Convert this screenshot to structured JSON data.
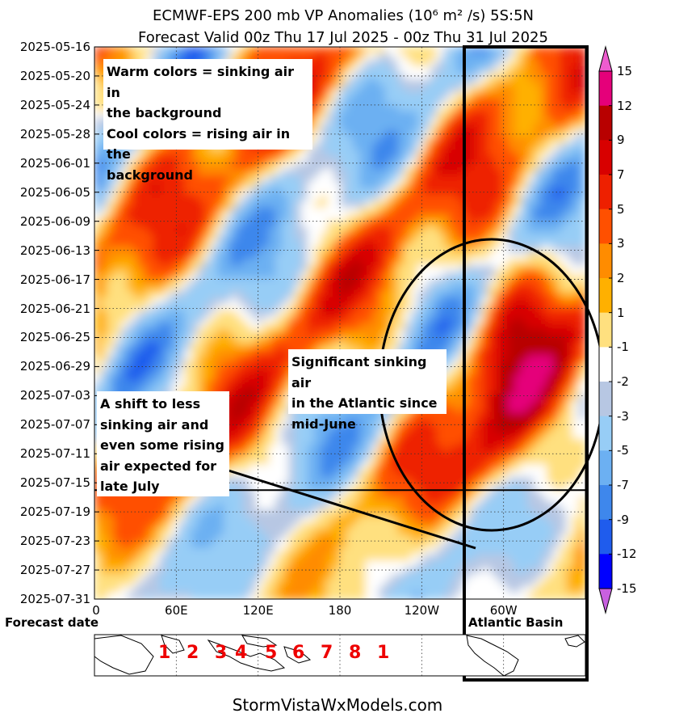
{
  "chart_data": {
    "type": "heatmap",
    "title": "ECMWF-EPS 200 mb VP Anomalies",
    "title_units": "(10⁶ m² /s) 5S:5N",
    "subtitle": "Forecast Valid 00z Thu 17 Jul 2025 - 00z Thu 31 Jul 2025",
    "y_tick_labels": [
      "2025-05-16",
      "2025-05-20",
      "2025-05-24",
      "2025-05-28",
      "2025-06-01",
      "2025-06-05",
      "2025-06-09",
      "2025-06-13",
      "2025-06-17",
      "2025-06-21",
      "2025-06-25",
      "2025-06-29",
      "2025-07-03",
      "2025-07-07",
      "2025-07-11",
      "2025-07-15",
      "2025-07-19",
      "2025-07-23",
      "2025-07-27",
      "2025-07-31"
    ],
    "x_tick_labels": [
      "0",
      "60E",
      "120E",
      "180",
      "120W",
      "60W"
    ],
    "x_range_degrees": [
      0,
      360
    ],
    "forecast_start": "2025-07-17",
    "colorbar_levels": [
      15,
      12,
      9,
      7,
      5,
      3,
      2,
      1,
      -1,
      -2,
      -3,
      -5,
      -7,
      -9,
      -12,
      -15
    ],
    "colorbar_colors": [
      "#ee5ccf",
      "#e5007a",
      "#b80000",
      "#d80000",
      "#ee2000",
      "#ff5000",
      "#ff8c00",
      "#ffb000",
      "#ffe07f",
      "#ffffff",
      "#b7c7e3",
      "#97cdf6",
      "#6cb0f2",
      "#3e87ec",
      "#1f5ced",
      "#0000ff",
      "#3020c8",
      "#6020d8",
      "#a020f0",
      "#c860e0"
    ],
    "grid": true
  },
  "annotations": {
    "warm_cool": [
      "Warm colors = sinking air in",
      "the background",
      "Cool colors = rising air in the",
      "background"
    ],
    "sinking": [
      "Significant sinking air",
      "in the Atlantic since",
      "mid-June"
    ],
    "shift": [
      "A shift to less",
      "sinking air and",
      "even some rising",
      "air expected for",
      "late July"
    ]
  },
  "labels": {
    "forecast_date": "Forecast date",
    "atlantic_basin": "Atlantic Basin",
    "footer": "StormVistaWxModels.com",
    "mjo_phases": [
      "1",
      "2",
      "3",
      "4",
      "5",
      "6",
      "7",
      "8",
      "1"
    ]
  }
}
